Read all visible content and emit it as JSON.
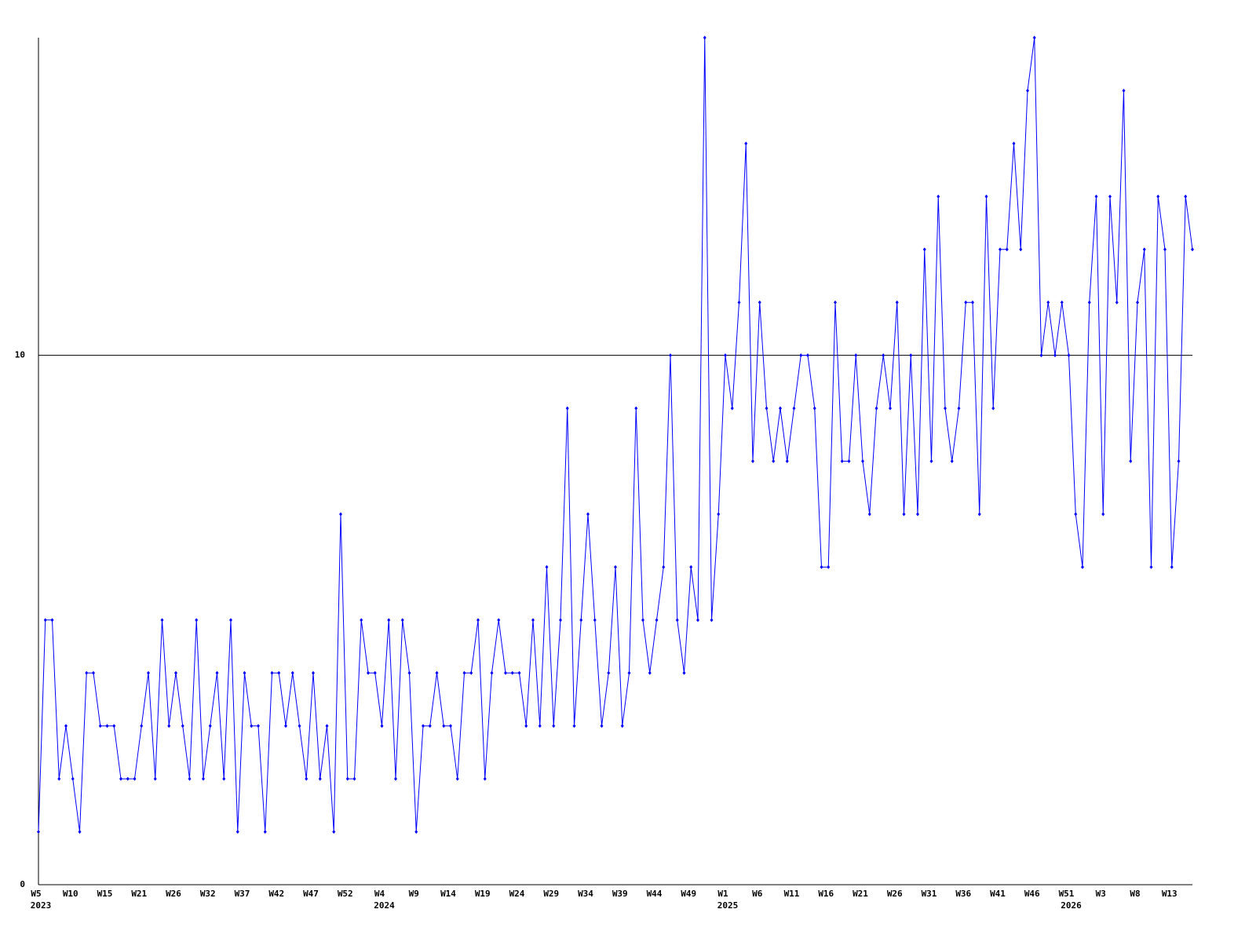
{
  "chart_data": {
    "type": "line",
    "categories": [
      "W5",
      null,
      null,
      null,
      null,
      "W10",
      null,
      null,
      null,
      null,
      "W15",
      null,
      null,
      null,
      null,
      "W21",
      null,
      null,
      null,
      null,
      "W26",
      null,
      null,
      null,
      null,
      "W32",
      null,
      null,
      null,
      null,
      "W37",
      null,
      null,
      null,
      null,
      "W42",
      null,
      null,
      null,
      null,
      "W47",
      null,
      null,
      null,
      null,
      "W52",
      null,
      null,
      null,
      null,
      "W4",
      null,
      null,
      null,
      null,
      "W9",
      null,
      null,
      null,
      null,
      "W14",
      null,
      null,
      null,
      null,
      "W19",
      null,
      null,
      null,
      null,
      "W24",
      null,
      null,
      null,
      null,
      "W29",
      null,
      null,
      null,
      null,
      "W34",
      null,
      null,
      null,
      null,
      "W39",
      null,
      null,
      null,
      null,
      "W44",
      null,
      null,
      null,
      null,
      "W49",
      null,
      null,
      null,
      null,
      "W1",
      null,
      null,
      null,
      null,
      "W6",
      null,
      null,
      null,
      null,
      "W11",
      null,
      null,
      null,
      null,
      "W16",
      null,
      null,
      null,
      null,
      "W21",
      null,
      null,
      null,
      null,
      "W26",
      null,
      null,
      null,
      null,
      "W31",
      null,
      null,
      null,
      null,
      "W36",
      null,
      null,
      null,
      null,
      "W41",
      null,
      null,
      null,
      null,
      "W46",
      null,
      null,
      null,
      null,
      "W51",
      null,
      null,
      null,
      null,
      "W3",
      null,
      null,
      null,
      null,
      "W8",
      null,
      null,
      null,
      null,
      "W13",
      null,
      null,
      null
    ],
    "year_labels": [
      "2023",
      null,
      null,
      null,
      null,
      null,
      null,
      null,
      null,
      null,
      null,
      null,
      null,
      null,
      null,
      null,
      null,
      null,
      null,
      null,
      null,
      null,
      null,
      null,
      null,
      null,
      null,
      null,
      null,
      null,
      null,
      null,
      null,
      null,
      null,
      null,
      null,
      null,
      null,
      null,
      null,
      null,
      null,
      null,
      null,
      null,
      null,
      null,
      null,
      null,
      "2024",
      null,
      null,
      null,
      null,
      null,
      null,
      null,
      null,
      null,
      null,
      null,
      null,
      null,
      null,
      null,
      null,
      null,
      null,
      null,
      null,
      null,
      null,
      null,
      null,
      null,
      null,
      null,
      null,
      null,
      null,
      null,
      null,
      null,
      null,
      null,
      null,
      null,
      null,
      null,
      null,
      null,
      null,
      null,
      null,
      null,
      null,
      null,
      null,
      null,
      "2025",
      null,
      null,
      null,
      null,
      null,
      null,
      null,
      null,
      null,
      null,
      null,
      null,
      null,
      null,
      null,
      null,
      null,
      null,
      null,
      null,
      null,
      null,
      null,
      null,
      null,
      null,
      null,
      null,
      null,
      null,
      null,
      null,
      null,
      null,
      null,
      null,
      null,
      null,
      null,
      null,
      null,
      null,
      null,
      null,
      null,
      null,
      null,
      null,
      null,
      "2026",
      null,
      null,
      null,
      null,
      null,
      null,
      null,
      null,
      null,
      null,
      null,
      null,
      null,
      null,
      null,
      null,
      null,
      null
    ],
    "values": [
      1,
      5,
      5,
      2,
      3,
      2,
      1,
      4,
      4,
      3,
      3,
      3,
      2,
      2,
      2,
      3,
      4,
      2,
      5,
      3,
      4,
      3,
      2,
      5,
      2,
      3,
      4,
      2,
      5,
      1,
      4,
      3,
      3,
      1,
      4,
      4,
      3,
      4,
      3,
      2,
      4,
      2,
      3,
      1,
      7,
      2,
      2,
      5,
      4,
      4,
      3,
      5,
      2,
      5,
      4,
      1,
      3,
      3,
      4,
      3,
      3,
      2,
      4,
      4,
      5,
      2,
      4,
      5,
      4,
      4,
      4,
      3,
      5,
      3,
      6,
      3,
      5,
      9,
      3,
      5,
      7,
      5,
      3,
      4,
      6,
      3,
      4,
      9,
      5,
      4,
      5,
      6,
      10,
      5,
      4,
      6,
      5,
      16,
      5,
      7,
      10,
      9,
      11,
      14,
      8,
      11,
      9,
      8,
      9,
      8,
      9,
      10,
      10,
      9,
      6,
      6,
      11,
      8,
      8,
      10,
      8,
      7,
      9,
      10,
      9,
      11,
      7,
      10,
      7,
      12,
      8,
      13,
      9,
      8,
      9,
      11,
      11,
      7,
      13,
      9,
      12,
      12,
      14,
      12,
      15,
      16,
      10,
      11,
      10,
      11,
      10,
      7,
      6,
      11,
      13,
      7,
      13,
      11,
      15,
      8,
      11,
      12,
      6,
      13,
      12,
      6,
      8,
      13,
      12
    ],
    "color": "#0000ff",
    "ylim": [
      0,
      16
    ],
    "yticks": [
      0,
      10
    ],
    "grid": true
  }
}
